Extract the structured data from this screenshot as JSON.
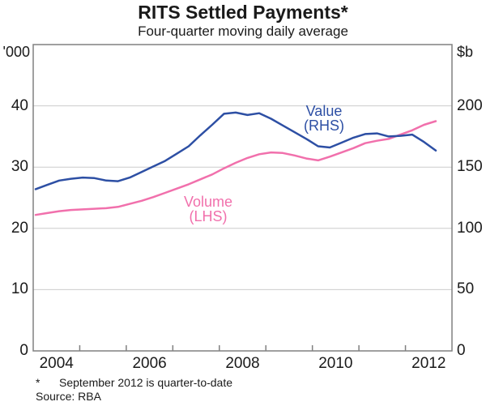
{
  "header": {
    "title": "RITS Settled Payments*",
    "subtitle": "Four-quarter moving daily average"
  },
  "axes": {
    "left_unit": "'000",
    "right_unit": "$b",
    "left_ticks": [
      0,
      10,
      20,
      30,
      40
    ],
    "right_ticks": [
      0,
      50,
      100,
      150,
      200
    ],
    "x_labels": [
      "2004",
      "2006",
      "2008",
      "2010",
      "2012"
    ],
    "x_label_years": [
      2004,
      2006,
      2008,
      2010,
      2012
    ],
    "x_tick_years": [
      2005,
      2006,
      2007,
      2008,
      2009,
      2010,
      2011,
      2012
    ]
  },
  "annotations": {
    "value_label": "Value",
    "value_sub": "(RHS)",
    "volume_label": "Volume",
    "volume_sub": "(LHS)"
  },
  "footnote": {
    "marker": "*",
    "text": "September 2012 is quarter-to-date",
    "source": "Source: RBA"
  },
  "colors": {
    "value": "#2d4fa4",
    "volume": "#f170ac",
    "grid": "#cccccc",
    "frame": "#808080"
  },
  "chart_data": {
    "type": "line",
    "title": "RITS Settled Payments*",
    "subtitle": "Four-quarter moving daily average",
    "x_range_years": [
      2004,
      2013
    ],
    "ylim_left": [
      0,
      50
    ],
    "ylim_right": [
      0,
      250
    ],
    "grid_values_left": [
      10,
      20,
      30,
      40
    ],
    "legend_position": "inline-annotations",
    "grid": true,
    "x_quarters": [
      "2004Q1",
      "2004Q2",
      "2004Q3",
      "2004Q4",
      "2005Q1",
      "2005Q2",
      "2005Q3",
      "2005Q4",
      "2006Q1",
      "2006Q2",
      "2006Q3",
      "2006Q4",
      "2007Q1",
      "2007Q2",
      "2007Q3",
      "2007Q4",
      "2008Q1",
      "2008Q2",
      "2008Q3",
      "2008Q4",
      "2009Q1",
      "2009Q2",
      "2009Q3",
      "2009Q4",
      "2010Q1",
      "2010Q2",
      "2010Q3",
      "2010Q4",
      "2011Q1",
      "2011Q2",
      "2011Q3",
      "2011Q4",
      "2012Q1",
      "2012Q2",
      "2012Q3"
    ],
    "series": [
      {
        "name": "Volume (LHS, '000)",
        "axis": "left",
        "color_key": "volume",
        "values": [
          22.2,
          22.5,
          22.8,
          23.0,
          23.1,
          23.2,
          23.3,
          23.5,
          24.0,
          24.5,
          25.1,
          25.8,
          26.5,
          27.2,
          28.0,
          28.8,
          29.8,
          30.7,
          31.5,
          32.1,
          32.4,
          32.3,
          31.9,
          31.4,
          31.1,
          31.7,
          32.4,
          33.1,
          33.9,
          34.3,
          34.6,
          35.3,
          36.0,
          36.9,
          37.5
        ]
      },
      {
        "name": "Value (RHS, $b)",
        "axis": "right",
        "color_key": "value",
        "values": [
          132,
          135.5,
          139,
          140.5,
          141.5,
          141,
          139,
          138.5,
          141.5,
          146,
          150.5,
          155,
          161,
          167,
          176,
          184.5,
          193.5,
          194.5,
          192.5,
          194,
          189.5,
          184,
          178.5,
          173,
          167,
          166,
          170,
          174,
          177,
          177.5,
          175,
          175.5,
          176.5,
          170.5,
          163.5
        ]
      }
    ]
  }
}
